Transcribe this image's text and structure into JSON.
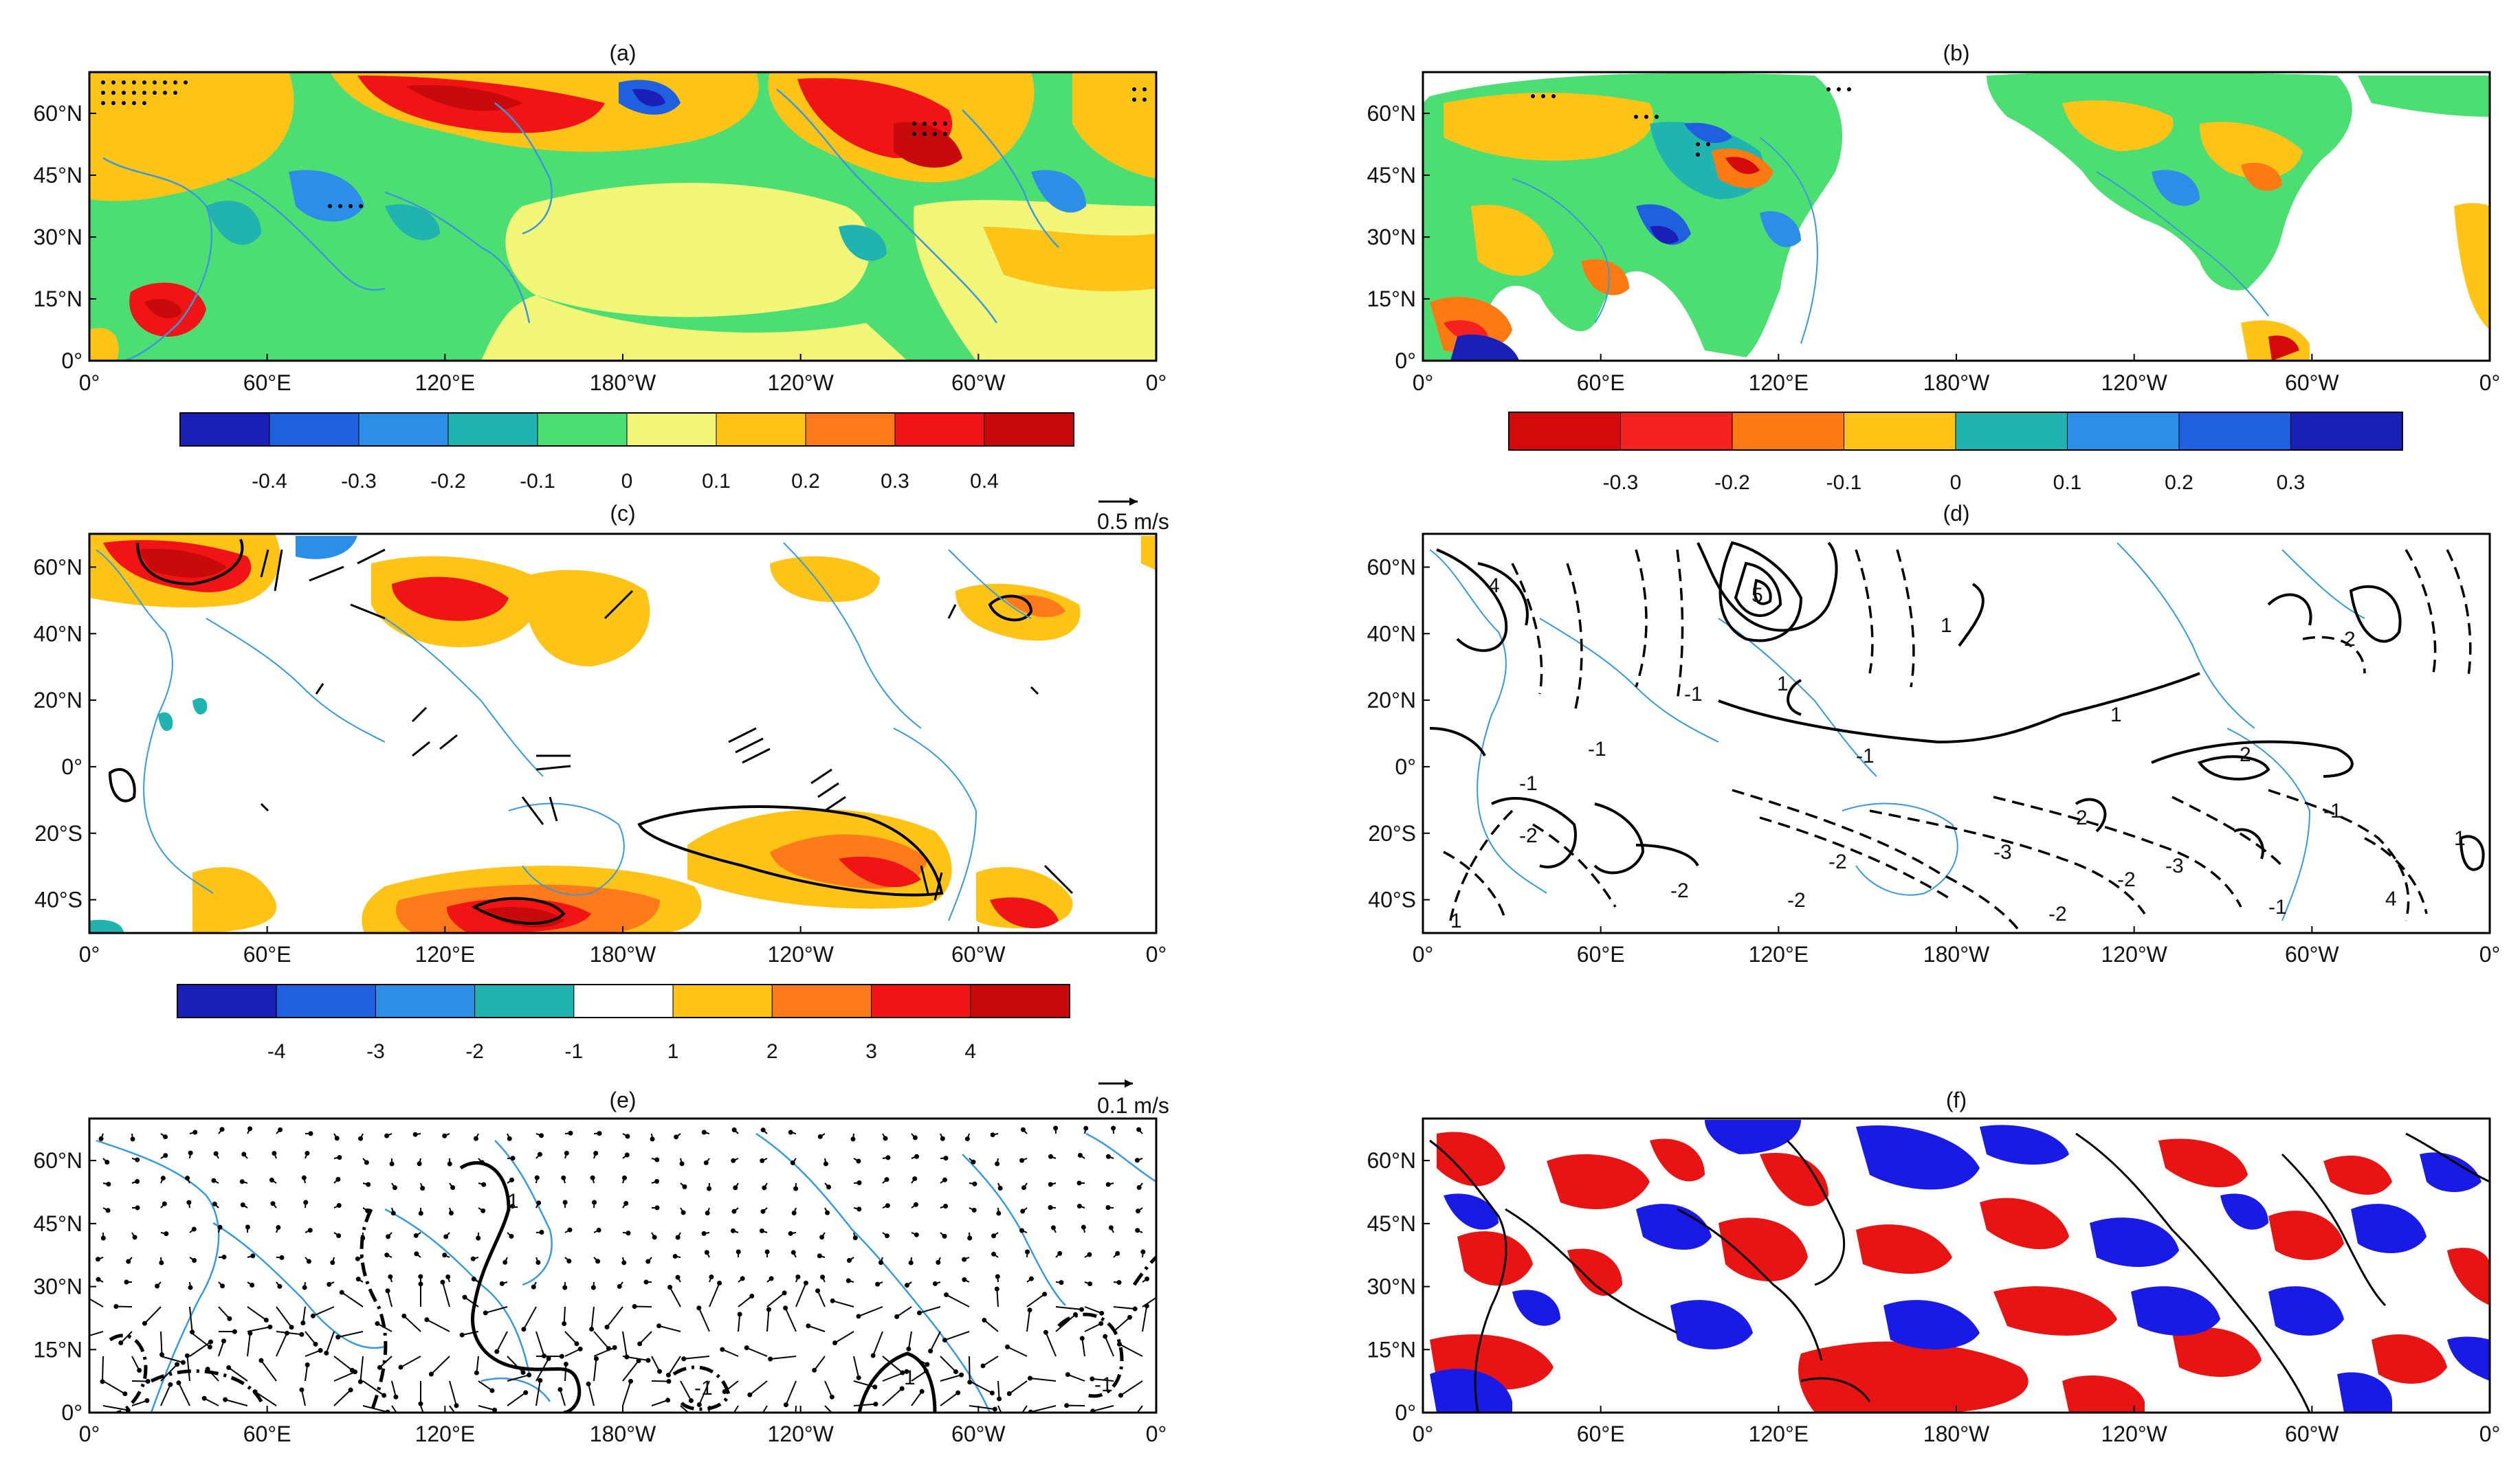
{
  "chart_data": {
    "type": "heatmap",
    "panels": [
      {
        "id": "a",
        "title": "(a)",
        "kind": "filled",
        "lat_labels": [
          "60°N",
          "45°N",
          "30°N",
          "15°N",
          "0°"
        ],
        "lat_values": [
          60,
          45,
          30,
          15,
          0
        ],
        "lat_range": [
          0,
          70
        ],
        "colorbar": {
          "labels": [
            "-0.4",
            "-0.3",
            "-0.2",
            "-0.1",
            "0",
            "0.1",
            "0.2",
            "0.3",
            "0.4"
          ],
          "colors": [
            "#1a1fb8",
            "#1f5fe0",
            "#2b8fe8",
            "#20b3b0",
            "#4dde73",
            "#f2f77a",
            "#ffc417",
            "#ff7a1a",
            "#f01414",
            "#c80a0a"
          ]
        }
      },
      {
        "id": "b",
        "title": "(b)",
        "kind": "filled-land",
        "lat_labels": [
          "60°N",
          "45°N",
          "30°N",
          "15°N",
          "0°"
        ],
        "lat_values": [
          60,
          45,
          30,
          15,
          0
        ],
        "lat_range": [
          0,
          70
        ],
        "colorbar": {
          "labels": [
            "-0.3",
            "-0.2",
            "-0.1",
            "0",
            "0.1",
            "0.2",
            "0.3"
          ],
          "colors": [
            "#d40a0a",
            "#f52020",
            "#ff7a10",
            "#ffc417",
            "#20b3b0",
            "#2b8fe8",
            "#1f5fe0",
            "#1a1fb8"
          ]
        }
      },
      {
        "id": "c",
        "title": "(c)",
        "kind": "filled-vectors",
        "vector_ref": "0.5 m/s",
        "lat_labels": [
          "60°N",
          "40°N",
          "20°N",
          "0°",
          "20°S",
          "40°S"
        ],
        "lat_values": [
          60,
          40,
          20,
          0,
          -20,
          -40
        ],
        "lat_range": [
          -50,
          70
        ],
        "colorbar": {
          "labels": [
            "-4",
            "-3",
            "-2",
            "-1",
            "1",
            "2",
            "3",
            "4"
          ],
          "colors": [
            "#1a1fb8",
            "#1f5fe0",
            "#2b8fe8",
            "#20b3b0",
            "#ffffff",
            "#ffc417",
            "#ff7a1a",
            "#f01414",
            "#c80a0a"
          ]
        }
      },
      {
        "id": "d",
        "title": "(d)",
        "kind": "contours",
        "lat_labels": [
          "60°N",
          "40°N",
          "20°N",
          "0°",
          "20°S",
          "40°S"
        ],
        "lat_values": [
          60,
          40,
          20,
          0,
          -20,
          -40
        ],
        "lat_range": [
          -50,
          70
        ],
        "contour_labels": [
          "4",
          "5",
          "1",
          "1",
          "2",
          "-1",
          "-1",
          "1",
          "-2",
          "2",
          "-2",
          "-3",
          "-2",
          "-2",
          "-3",
          "-1",
          "4",
          "-1",
          "1",
          "1",
          "2",
          "-2",
          "-2",
          "-1",
          "-1"
        ]
      },
      {
        "id": "e",
        "title": "(e)",
        "kind": "vectors-contours",
        "vector_ref": "0.1 m/s",
        "lat_labels": [
          "60°N",
          "45°N",
          "30°N",
          "15°N",
          "0°"
        ],
        "lat_values": [
          60,
          45,
          30,
          15,
          0
        ],
        "lat_range": [
          0,
          70
        ],
        "contour_labels": [
          "1",
          "1",
          "-1",
          "-1"
        ]
      },
      {
        "id": "f",
        "title": "(f)",
        "kind": "sign-map",
        "lat_labels": [
          "60°N",
          "45°N",
          "30°N",
          "15°N",
          "0°"
        ],
        "lat_values": [
          60,
          45,
          30,
          15,
          0
        ],
        "lat_range": [
          0,
          70
        ],
        "sign_colors": [
          "#e81414",
          "#1a1ae6"
        ]
      }
    ],
    "lon_labels": [
      "0°",
      "60°E",
      "120°E",
      "180°W",
      "120°W",
      "60°W",
      "0°"
    ],
    "lon_values": [
      0,
      60,
      120,
      180,
      240,
      300,
      360
    ],
    "lon_range": [
      0,
      360
    ]
  },
  "colors": {
    "coast": "#3a9ad9",
    "frame": "#000000",
    "grid": "#9a9a9a"
  }
}
